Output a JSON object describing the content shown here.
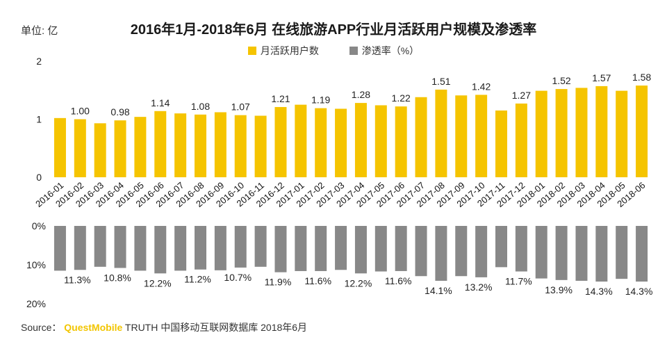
{
  "chart_data": [
    {
      "type": "bar",
      "title": "2016年1月-2018年6月 在线旅游APP行业月活跃用户规模及渗透率",
      "unit": "单位: 亿",
      "series": [
        {
          "name": "月活跃用户数",
          "color": "#f5c400",
          "values": [
            1.02,
            1.0,
            0.93,
            0.98,
            1.04,
            1.14,
            1.1,
            1.08,
            1.12,
            1.07,
            1.06,
            1.21,
            1.25,
            1.19,
            1.18,
            1.28,
            1.24,
            1.22,
            1.38,
            1.51,
            1.41,
            1.42,
            1.15,
            1.27,
            1.49,
            1.52,
            1.54,
            1.57,
            1.49,
            1.58
          ]
        }
      ],
      "categories": [
        "2016-01",
        "2016-02",
        "2016-03",
        "2016-04",
        "2016-05",
        "2016-06",
        "2016-07",
        "2016-08",
        "2016-09",
        "2016-10",
        "2016-11",
        "2016-12",
        "2017-01",
        "2017-02",
        "2017-03",
        "2017-04",
        "2017-05",
        "2017-06",
        "2017-07",
        "2017-08",
        "2017-09",
        "2017-10",
        "2017-11",
        "2017-12",
        "2018-01",
        "2018-02",
        "2018-03",
        "2018-04",
        "2018-05",
        "2018-06"
      ],
      "labeled_indices": [
        1,
        3,
        5,
        7,
        9,
        11,
        13,
        15,
        17,
        19,
        21,
        23,
        25,
        27,
        29
      ],
      "yticks": [
        "2",
        "1",
        "0"
      ],
      "ylim": [
        0,
        2
      ]
    },
    {
      "type": "bar",
      "orientation": "downward",
      "series": [
        {
          "name": "渗透率（%）",
          "color": "#888888",
          "values": [
            11.5,
            11.3,
            10.5,
            10.8,
            11.5,
            12.2,
            11.5,
            11.2,
            11.4,
            10.7,
            10.5,
            11.9,
            11.6,
            11.6,
            11.3,
            12.2,
            11.7,
            11.6,
            12.9,
            14.1,
            12.9,
            13.2,
            10.6,
            11.7,
            13.5,
            13.9,
            14.1,
            14.3,
            13.6,
            14.3
          ]
        }
      ],
      "value_labels": [
        "11.3%",
        "10.8%",
        "12.2%",
        "11.2%",
        "10.7%",
        "11.9%",
        "11.6%",
        "12.2%",
        "11.6%",
        "14.1%",
        "13.2%",
        "11.7%",
        "13.9%",
        "14.3%",
        "14.3%"
      ],
      "labeled_indices": [
        1,
        3,
        5,
        7,
        9,
        11,
        13,
        15,
        17,
        19,
        21,
        23,
        25,
        27,
        29
      ],
      "yticks": [
        "0%",
        "10%",
        "20%"
      ],
      "ylim": [
        0,
        20
      ]
    }
  ],
  "header": {
    "unit": "单位: 亿",
    "title": "2016年1月-2018年6月 在线旅游APP行业月活跃用户规模及渗透率"
  },
  "legend": {
    "items": [
      {
        "label": "月活跃用户数",
        "color": "#f5c400"
      },
      {
        "label": "渗透率（%）",
        "color": "#888888"
      }
    ]
  },
  "source": {
    "prefix": "Source：",
    "brand": "QuestMobile",
    "rest": "TRUTH 中国移动互联网数据库 2018年6月"
  }
}
